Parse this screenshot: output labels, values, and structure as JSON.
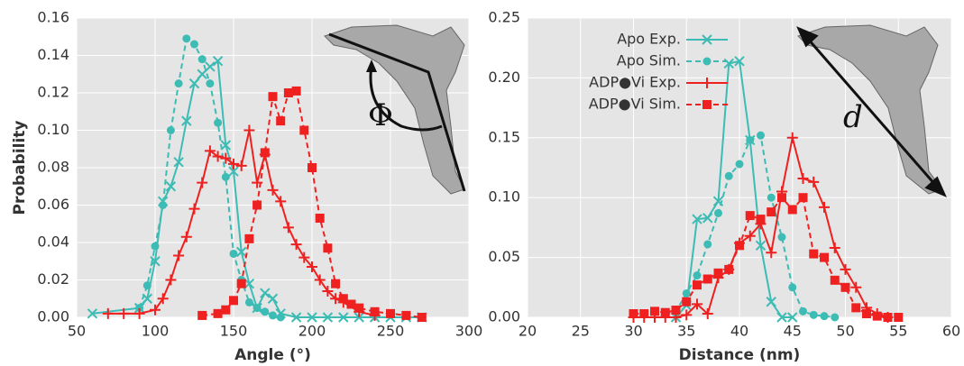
{
  "chart_data": [
    {
      "type": "line",
      "xlabel": "Angle (°)",
      "ylabel": "Probability",
      "annotation": "Φ",
      "xlim": [
        50,
        300
      ],
      "xticks": [
        50,
        100,
        150,
        200,
        250,
        300
      ],
      "ylim": [
        0,
        0.16
      ],
      "yticks": [
        {
          "value": 0,
          "label": "0.00"
        },
        {
          "value": 0.02,
          "label": "0.02"
        },
        {
          "value": 0.04,
          "label": "0.04"
        },
        {
          "value": 0.06,
          "label": "0.06"
        },
        {
          "value": 0.08,
          "label": "0.08"
        },
        {
          "value": 0.1,
          "label": "0.10"
        },
        {
          "value": 0.12,
          "label": "0.12"
        },
        {
          "value": 0.14,
          "label": "0.14"
        },
        {
          "value": 0.16,
          "label": "0.16"
        }
      ],
      "grid": true,
      "series": [
        {
          "color": "#3cbcb4",
          "marker": "x",
          "dashed": false,
          "x": [
            60,
            90,
            95,
            100,
            105,
            110,
            115,
            120,
            125,
            130,
            135,
            140,
            145,
            150,
            155,
            160,
            165,
            170,
            175,
            180,
            190,
            200,
            210,
            220,
            230,
            240,
            250,
            260,
            270
          ],
          "values": [
            0.002,
            0.005,
            0.01,
            0.03,
            0.062,
            0.07,
            0.083,
            0.105,
            0.125,
            0.13,
            0.134,
            0.137,
            0.092,
            0.078,
            0.035,
            0.018,
            0.005,
            0.013,
            0.01,
            0.002,
            0,
            0,
            0,
            0,
            0,
            0,
            0,
            0,
            0
          ]
        },
        {
          "color": "#3cbcb4",
          "marker": "circle",
          "dashed": true,
          "x": [
            90,
            95,
            100,
            105,
            110,
            115,
            120,
            125,
            130,
            135,
            140,
            145,
            150,
            155,
            160,
            165,
            170,
            175,
            180
          ],
          "values": [
            0.005,
            0.017,
            0.038,
            0.06,
            0.1,
            0.125,
            0.149,
            0.146,
            0.138,
            0.125,
            0.104,
            0.075,
            0.034,
            0.02,
            0.008,
            0.005,
            0.003,
            0.001,
            0
          ]
        },
        {
          "color": "#ee2020",
          "marker": "plus",
          "dashed": false,
          "x": [
            70,
            80,
            90,
            100,
            105,
            110,
            115,
            120,
            125,
            130,
            135,
            140,
            145,
            150,
            155,
            160,
            165,
            170,
            175,
            180,
            185,
            190,
            195,
            200,
            205,
            210,
            215,
            220,
            230,
            240
          ],
          "values": [
            0.002,
            0.002,
            0.002,
            0.004,
            0.01,
            0.02,
            0.033,
            0.043,
            0.058,
            0.072,
            0.089,
            0.086,
            0.085,
            0.082,
            0.081,
            0.1,
            0.072,
            0.087,
            0.068,
            0.062,
            0.048,
            0.039,
            0.032,
            0.027,
            0.02,
            0.014,
            0.01,
            0.008,
            0.003,
            0.001
          ]
        },
        {
          "color": "#ee2020",
          "marker": "square",
          "dashed": true,
          "x": [
            130,
            140,
            145,
            150,
            155,
            160,
            165,
            170,
            175,
            180,
            185,
            190,
            195,
            200,
            205,
            210,
            215,
            220,
            225,
            230,
            240,
            250,
            260,
            270
          ],
          "values": [
            0.001,
            0.002,
            0.004,
            0.009,
            0.018,
            0.042,
            0.06,
            0.088,
            0.118,
            0.105,
            0.12,
            0.121,
            0.1,
            0.08,
            0.053,
            0.037,
            0.018,
            0.01,
            0.007,
            0.005,
            0.003,
            0.002,
            0.001,
            0
          ]
        }
      ]
    },
    {
      "type": "line",
      "xlabel": "Distance (nm)",
      "annotation": "d",
      "legend": "upper left",
      "xlim": [
        20,
        60
      ],
      "xticks": [
        20,
        25,
        30,
        35,
        40,
        45,
        50,
        55,
        60
      ],
      "ylim": [
        0,
        0.25
      ],
      "yticks": [
        {
          "value": 0,
          "label": "0.00"
        },
        {
          "value": 0.05,
          "label": "0.05"
        },
        {
          "value": 0.1,
          "label": "0.10"
        },
        {
          "value": 0.15,
          "label": "0.15"
        },
        {
          "value": 0.2,
          "label": "0.20"
        },
        {
          "value": 0.25,
          "label": "0.25"
        }
      ],
      "grid": true,
      "series": [
        {
          "name": "Apo Exp.",
          "color": "#3cbcb4",
          "marker": "x",
          "dashed": false,
          "x": [
            34,
            35,
            36,
            37,
            38,
            39,
            40,
            41,
            42,
            43,
            44,
            45
          ],
          "values": [
            0,
            0.01,
            0.082,
            0.083,
            0.097,
            0.212,
            0.214,
            0.148,
            0.06,
            0.013,
            0,
            0
          ]
        },
        {
          "name": "Apo Sim.",
          "color": "#3cbcb4",
          "marker": "circle",
          "dashed": true,
          "x": [
            33,
            34,
            35,
            36,
            37,
            38,
            39,
            40,
            41,
            42,
            43,
            44,
            45,
            46,
            47,
            48,
            49
          ],
          "values": [
            0.003,
            0.005,
            0.02,
            0.035,
            0.061,
            0.087,
            0.118,
            0.128,
            0.148,
            0.152,
            0.1,
            0.067,
            0.025,
            0.005,
            0.002,
            0.001,
            0
          ]
        },
        {
          "name": "ADP●Vi Exp.",
          "color": "#ee2020",
          "marker": "plus",
          "dashed": false,
          "x": [
            30,
            31,
            32,
            33,
            34,
            35,
            36,
            37,
            38,
            39,
            40,
            41,
            42,
            43,
            44,
            45,
            46,
            47,
            48,
            49,
            50,
            51,
            52,
            53,
            54
          ],
          "values": [
            0,
            0,
            0,
            0,
            0,
            0.002,
            0.011,
            0.003,
            0.033,
            0.04,
            0.062,
            0.068,
            0.078,
            0.054,
            0.105,
            0.15,
            0.116,
            0.113,
            0.092,
            0.058,
            0.04,
            0.025,
            0.008,
            0.003,
            0
          ]
        },
        {
          "name": "ADP●Vi Sim.",
          "color": "#ee2020",
          "marker": "square",
          "dashed": true,
          "x": [
            30,
            31,
            32,
            33,
            34,
            35,
            36,
            37,
            38,
            39,
            40,
            41,
            42,
            43,
            44,
            45,
            46,
            47,
            48,
            49,
            50,
            51,
            52,
            53,
            54,
            55
          ],
          "values": [
            0.003,
            0.003,
            0.005,
            0.004,
            0.006,
            0.013,
            0.027,
            0.032,
            0.037,
            0.04,
            0.06,
            0.085,
            0.082,
            0.088,
            0.1,
            0.09,
            0.1,
            0.053,
            0.05,
            0.031,
            0.025,
            0.008,
            0.003,
            0.001,
            0,
            0
          ]
        }
      ]
    }
  ]
}
